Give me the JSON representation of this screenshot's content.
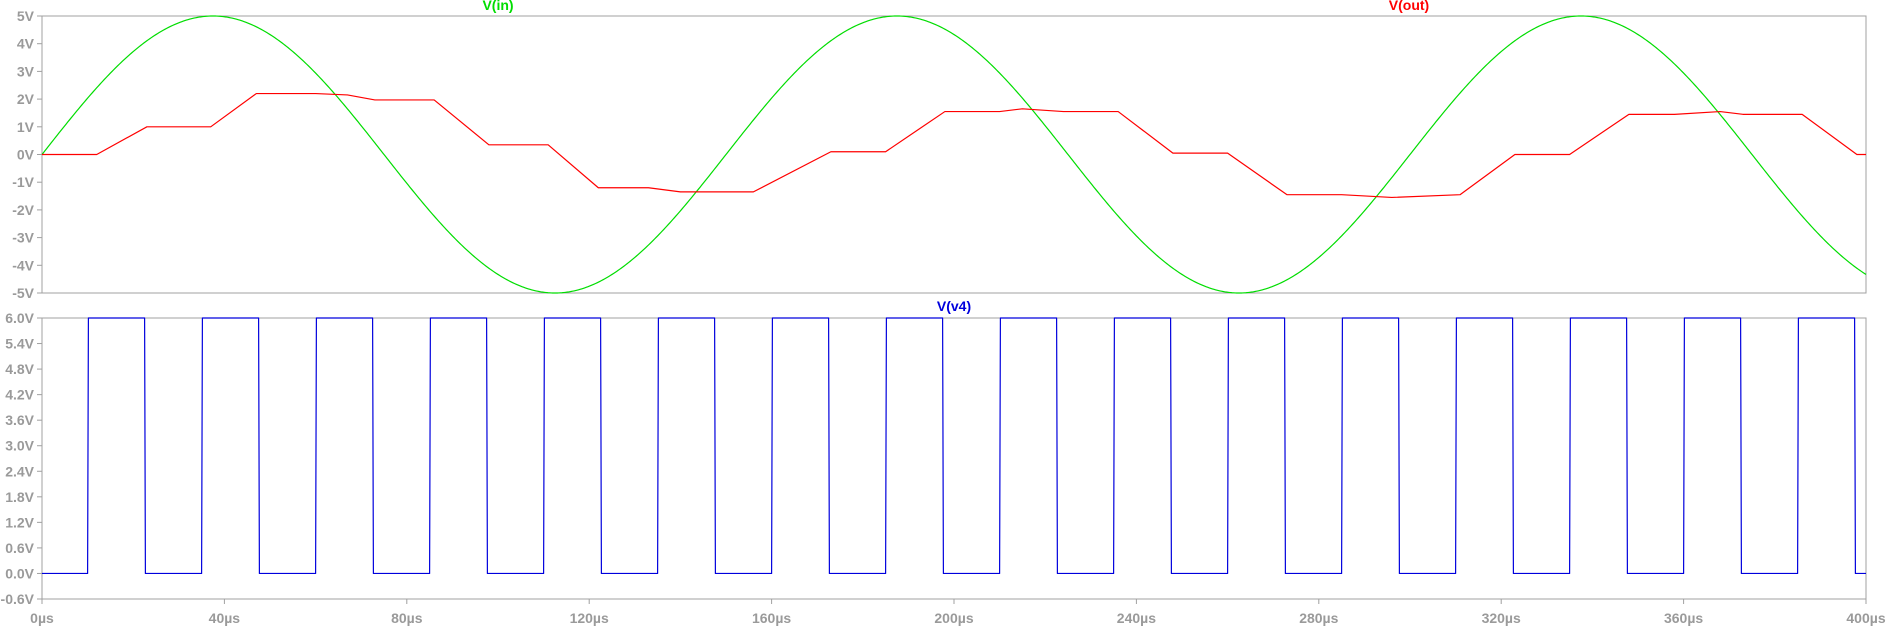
{
  "chart_data": [
    {
      "type": "line",
      "series": [
        {
          "name": "V(in)",
          "color": "#00dd00",
          "function": "sine",
          "amplitude": 5,
          "period_us": 150,
          "t_start_us": 0,
          "t_end_us": 400
        },
        {
          "name": "V(out)",
          "color": "#ff0000",
          "x": [
            0,
            12,
            23,
            37,
            47,
            60,
            67,
            73,
            86,
            98,
            111,
            122,
            133,
            140,
            156,
            173,
            185,
            198,
            210,
            215,
            224,
            236,
            248,
            260,
            273,
            285,
            296,
            311,
            323,
            335,
            348,
            358,
            368,
            373,
            386,
            398,
            400
          ],
          "y": [
            0,
            0,
            1.0,
            1.0,
            2.2,
            2.2,
            2.15,
            1.97,
            1.97,
            0.35,
            0.35,
            -1.2,
            -1.2,
            -1.35,
            -1.35,
            0.1,
            0.1,
            1.55,
            1.55,
            1.65,
            1.55,
            1.55,
            0.05,
            0.05,
            -1.45,
            -1.45,
            -1.55,
            -1.45,
            0.0,
            0.0,
            1.45,
            1.45,
            1.55,
            1.45,
            1.45,
            0.0,
            0.0
          ]
        }
      ],
      "xlim": [
        0,
        400
      ],
      "ylim": [
        -5,
        5
      ],
      "y_ticks": [
        "5V",
        "4V",
        "3V",
        "2V",
        "1V",
        "0V",
        "-1V",
        "-2V",
        "-3V",
        "-4V",
        "-5V"
      ],
      "y_tick_values": [
        5,
        4,
        3,
        2,
        1,
        0,
        -1,
        -2,
        -3,
        -4,
        -5
      ],
      "grid": false
    },
    {
      "type": "line",
      "series": [
        {
          "name": "V(v4)",
          "color": "#0000dd",
          "function": "square",
          "low": 0,
          "high": 6,
          "period_us": 25,
          "rise_at_us": 10,
          "fall_at_us": 22.5,
          "t_start_us": 0,
          "t_end_us": 400
        }
      ],
      "xlim": [
        0,
        400
      ],
      "ylim": [
        -0.6,
        6.0
      ],
      "y_ticks": [
        "6.0V",
        "5.4V",
        "4.8V",
        "4.2V",
        "3.6V",
        "3.0V",
        "2.4V",
        "1.8V",
        "1.2V",
        "0.6V",
        "0.0V",
        "-0.6V"
      ],
      "y_tick_values": [
        6.0,
        5.4,
        4.8,
        4.2,
        3.6,
        3.0,
        2.4,
        1.8,
        1.2,
        0.6,
        0.0,
        -0.6
      ],
      "x_ticks": [
        "0µs",
        "40µs",
        "80µs",
        "120µs",
        "160µs",
        "200µs",
        "240µs",
        "280µs",
        "320µs",
        "360µs",
        "400µs"
      ],
      "x_tick_values": [
        0,
        40,
        80,
        120,
        160,
        200,
        240,
        280,
        320,
        360,
        400
      ],
      "grid": false
    }
  ],
  "colors": {
    "axis": "#a0a0a0",
    "tick_text": "#9a9a9a",
    "background": "#ffffff"
  }
}
